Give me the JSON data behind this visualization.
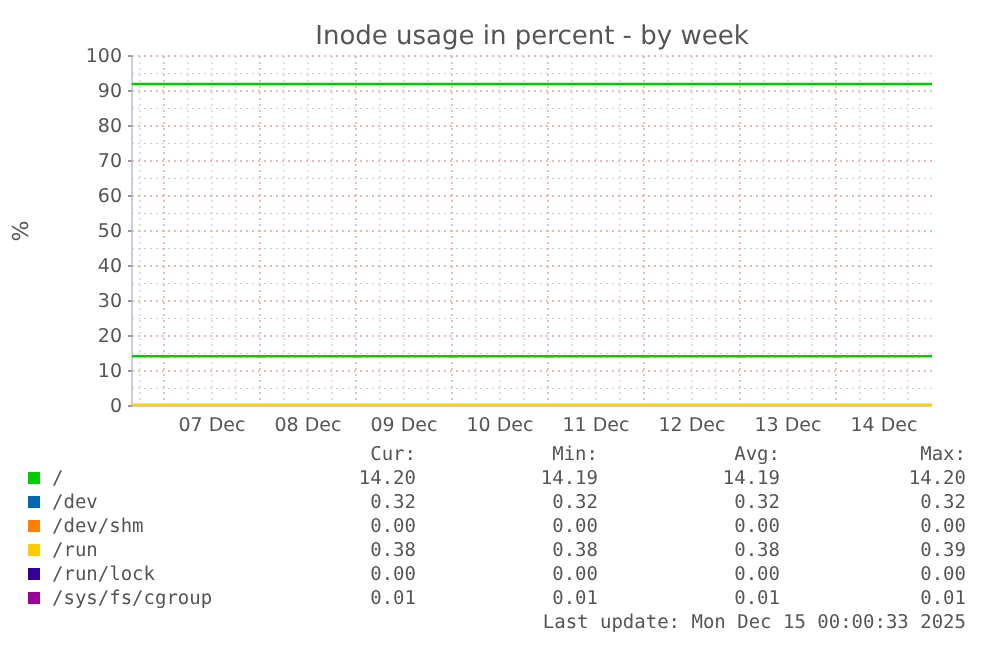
{
  "chart_data": {
    "type": "line",
    "title": "Inode usage in percent - by week",
    "ylabel": "%",
    "x": [
      "2025-12-06T16:00",
      "2025-12-15T00:00"
    ],
    "xlim": [
      "2025-12-06T16:00",
      "2025-12-15T00:00"
    ],
    "xticks": [
      {
        "value": "2025-12-07T12:00",
        "label": "07 Dec"
      },
      {
        "value": "2025-12-08T12:00",
        "label": "08 Dec"
      },
      {
        "value": "2025-12-09T12:00",
        "label": "09 Dec"
      },
      {
        "value": "2025-12-10T12:00",
        "label": "10 Dec"
      },
      {
        "value": "2025-12-11T12:00",
        "label": "11 Dec"
      },
      {
        "value": "2025-12-12T12:00",
        "label": "12 Dec"
      },
      {
        "value": "2025-12-13T12:00",
        "label": "13 Dec"
      },
      {
        "value": "2025-12-14T12:00",
        "label": "14 Dec"
      }
    ],
    "ylim": [
      0,
      100
    ],
    "yticks": [
      0,
      10,
      20,
      30,
      40,
      50,
      60,
      70,
      80,
      90,
      100
    ],
    "grid": true,
    "legend": "bottom left",
    "marker": "none",
    "line_style": "solid",
    "series": [
      {
        "name": "/",
        "color": "#00cc00",
        "values": [
          14.2,
          14.2
        ]
      },
      {
        "name": "/dev",
        "color": "#0066b3",
        "values": [
          null,
          null
        ]
      },
      {
        "name": "/dev/shm",
        "color": "#ff8000",
        "values": [
          null,
          null
        ]
      },
      {
        "name": "/run",
        "color": "#ffcc00",
        "values": [
          0.38,
          0.38
        ]
      },
      {
        "name": "/run/lock",
        "color": "#330099",
        "values": [
          null,
          null
        ]
      },
      {
        "name": "/sys/fs/cgroup",
        "color": "#990099",
        "values": [
          null,
          null
        ]
      }
    ],
    "ref_lines": [
      {
        "axis": "y",
        "value": 92,
        "color": "#00cc00"
      }
    ],
    "annotations": [
      "Cur:",
      "Min:",
      "Avg:",
      "Max:",
      "14.20",
      "14.19",
      "14.19",
      "14.20",
      "0.32",
      "0.32",
      "0.32",
      "0.32",
      "0.00",
      "0.00",
      "0.00",
      "0.00",
      "0.38",
      "0.38",
      "0.38",
      "0.39",
      "0.00",
      "0.00",
      "0.00",
      "0.00",
      "0.01",
      "0.01",
      "0.01",
      "0.01",
      "Last update: Mon Dec 15 00:00:33 2025"
    ]
  }
}
